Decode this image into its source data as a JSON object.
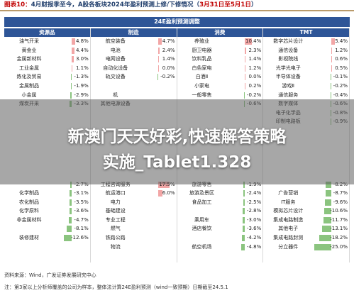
{
  "header": {
    "prefix": "图表10：",
    "text": "4月财报季至今，A股各板块2024年盈利预测上修/下修情况（",
    "date": "3月31日至5月1日",
    "suffix": "）"
  },
  "table_title": "24E盈利预测调整",
  "colors": {
    "positive": "#f2a6a6",
    "negative": "#8bc47f",
    "header": "#2e5597"
  },
  "groups": [
    {
      "name": "资源品",
      "rows": [
        {
          "label": "油气开采",
          "value": "4.8%",
          "v": 4.8
        },
        {
          "label": "黄金业",
          "value": "4.4%",
          "v": 4.4
        },
        {
          "label": "金属新材料",
          "value": "3.0%",
          "v": 3.0
        },
        {
          "label": "工业金属",
          "value": "1.1%",
          "v": 1.1
        },
        {
          "label": "炼化及贸易",
          "value": "-1.3%",
          "v": -1.3
        },
        {
          "label": "金属制品",
          "value": "-1.9%",
          "v": -1.9
        },
        {
          "label": "小金属",
          "value": "-2.9%",
          "v": -2.9
        },
        {
          "label": "煤炭开采",
          "value": "-3.3%",
          "v": -3.3
        },
        {
          "label": "",
          "value": "",
          "v": 0
        },
        {
          "label": "",
          "value": "",
          "v": 0
        },
        {
          "label": "",
          "value": "",
          "v": 0
        },
        {
          "label": "",
          "value": "",
          "v": 0
        },
        {
          "label": "",
          "value": "",
          "v": 0
        },
        {
          "label": "",
          "value": "",
          "v": 0
        },
        {
          "label": "",
          "value": "",
          "v": 0
        },
        {
          "label": "",
          "value": "",
          "v": 0
        },
        {
          "label": "",
          "value": "-2.7%",
          "v": -2.7
        },
        {
          "label": "化学制品",
          "value": "-3.1%",
          "v": -3.1
        },
        {
          "label": "农化制品",
          "value": "-3.5%",
          "v": -3.5
        },
        {
          "label": "化学原料",
          "value": "-3.6%",
          "v": -3.6
        },
        {
          "label": "非金属材料",
          "value": "-4.7%",
          "v": -4.7
        },
        {
          "label": "",
          "value": "-8.1%",
          "v": -8.1
        },
        {
          "label": "装修建材",
          "value": "-12.6%",
          "v": -12.6
        }
      ]
    },
    {
      "name": "制造",
      "rows": [
        {
          "label": "航空装备",
          "value": "4.7%",
          "v": 4.7
        },
        {
          "label": "电池",
          "value": "2.4%",
          "v": 2.4
        },
        {
          "label": "电网设备",
          "value": "1.4%",
          "v": 1.4
        },
        {
          "label": "自动化设备",
          "value": "0.0%",
          "v": 0.0
        },
        {
          "label": "轨交设备",
          "value": "-0.2%",
          "v": -0.2
        },
        {
          "label": "",
          "value": "",
          "v": 0
        },
        {
          "label": "机",
          "value": "",
          "v": 0
        },
        {
          "label": "其他电源设备",
          "value": "",
          "v": 0
        },
        {
          "label": "",
          "value": "",
          "v": 0
        },
        {
          "label": "",
          "value": "",
          "v": 0
        },
        {
          "label": "",
          "value": "",
          "v": 0
        },
        {
          "label": "",
          "value": "",
          "v": 0
        },
        {
          "label": "",
          "value": "",
          "v": 0
        },
        {
          "label": "",
          "value": "",
          "v": 0
        },
        {
          "label": "",
          "value": "",
          "v": 0
        },
        {
          "label": "",
          "value": "",
          "v": 0
        },
        {
          "label": "工程咨询服务",
          "value": "17.5%",
          "v": 17.5
        },
        {
          "label": "航运港口",
          "value": "6.0%",
          "v": 6.0
        },
        {
          "label": "电力",
          "value": "",
          "v": 0
        },
        {
          "label": "基础建设",
          "value": "",
          "v": 0
        },
        {
          "label": "专业工程",
          "value": "",
          "v": 0
        },
        {
          "label": "燃气",
          "value": "",
          "v": 0
        },
        {
          "label": "铁路公路",
          "value": "",
          "v": 0
        },
        {
          "label": "物流",
          "value": "",
          "v": 0
        }
      ]
    },
    {
      "name": "消费",
      "rows": [
        {
          "label": "养殖业",
          "value": "10.4%",
          "v": 10.4
        },
        {
          "label": "厨卫电器",
          "value": "2.3%",
          "v": 2.3
        },
        {
          "label": "饮料乳品",
          "value": "1.4%",
          "v": 1.4
        },
        {
          "label": "白色家电",
          "value": "1.2%",
          "v": 1.2
        },
        {
          "label": "白酒Ⅱ",
          "value": "0.0%",
          "v": 0.0
        },
        {
          "label": "小家电",
          "value": "0.2%",
          "v": 0.2
        },
        {
          "label": "一般零售",
          "value": "-0.2%",
          "v": -0.2
        },
        {
          "label": "",
          "value": "-0.6%",
          "v": -0.6
        },
        {
          "label": "",
          "value": "",
          "v": 0
        },
        {
          "label": "",
          "value": "",
          "v": 0
        },
        {
          "label": "",
          "value": "",
          "v": 0
        },
        {
          "label": "",
          "value": "",
          "v": 0
        },
        {
          "label": "",
          "value": "",
          "v": 0
        },
        {
          "label": "",
          "value": "",
          "v": 0
        },
        {
          "label": "",
          "value": "",
          "v": 0
        },
        {
          "label": "",
          "value": "",
          "v": 0
        },
        {
          "label": "旅游零售",
          "value": "-1.9%",
          "v": -1.9
        },
        {
          "label": "旅游及景区",
          "value": "-2.4%",
          "v": -2.4
        },
        {
          "label": "食品加工",
          "value": "-2.5%",
          "v": -2.5
        },
        {
          "label": "",
          "value": "-2.8%",
          "v": -2.8
        },
        {
          "label": "乘用车",
          "value": "-3.0%",
          "v": -3.0
        },
        {
          "label": "酒店餐饮",
          "value": "-3.6%",
          "v": -3.6
        },
        {
          "label": "",
          "value": "-4.2%",
          "v": -4.2
        },
        {
          "label": "航空机场",
          "value": "-4.8%",
          "v": -4.8
        }
      ]
    },
    {
      "name": "TMT",
      "rows": [
        {
          "label": "数字芯片设计",
          "value": "5.4%",
          "v": 5.4
        },
        {
          "label": "通信设备",
          "value": "1.2%",
          "v": 1.2
        },
        {
          "label": "影视院线",
          "value": "0.6%",
          "v": 0.6
        },
        {
          "label": "光学光电子",
          "value": "0.5%",
          "v": 0.5
        },
        {
          "label": "半导体设备",
          "value": "-0.1%",
          "v": -0.1
        },
        {
          "label": "游戏Ⅱ",
          "value": "-0.2%",
          "v": -0.2
        },
        {
          "label": "通信服务",
          "value": "-0.4%",
          "v": -0.4
        },
        {
          "label": "数字媒体",
          "value": "-0.6%",
          "v": -0.6
        },
        {
          "label": "电子化学品",
          "value": "-0.8%",
          "v": -0.8
        },
        {
          "label": "印制电路板",
          "value": "-0.9%",
          "v": -0.9
        },
        {
          "label": "",
          "value": "",
          "v": 0
        },
        {
          "label": "",
          "value": "",
          "v": 0
        },
        {
          "label": "",
          "value": "",
          "v": 0
        },
        {
          "label": "",
          "value": "",
          "v": 0
        },
        {
          "label": "",
          "value": "",
          "v": 0
        },
        {
          "label": "",
          "value": "",
          "v": 0
        },
        {
          "label": "",
          "value": "-8.2%",
          "v": -8.2
        },
        {
          "label": "广告营销",
          "value": "-8.7%",
          "v": -8.7
        },
        {
          "label": "IT服务",
          "value": "-9.6%",
          "v": -9.6
        },
        {
          "label": "模拟芯片设计",
          "value": "-10.6%",
          "v": -10.6
        },
        {
          "label": "集成电路制造",
          "value": "-11.7%",
          "v": -11.7
        },
        {
          "label": "其他电子",
          "value": "-13.1%",
          "v": -13.1
        },
        {
          "label": "集成电路封测",
          "value": "-18.2%",
          "v": -18.2
        },
        {
          "label": "分立器件",
          "value": "-25.0%",
          "v": -25.0
        }
      ]
    }
  ],
  "source": "资料来源：Wind，广发证券发展研究中心",
  "note": "注：第3家以上分析师覆盖的公司为样本，整体法计算24E盈利预测（wind一致预期）日期截至24.5.1",
  "overlay": {
    "line1": "新澳门天天好彩,快速解答策略",
    "line2": "实施_Tablet1.328"
  }
}
